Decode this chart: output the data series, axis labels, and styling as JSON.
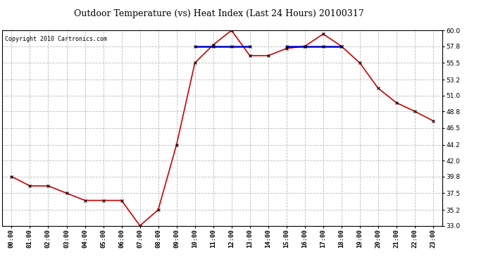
{
  "title": "Outdoor Temperature (vs) Heat Index (Last 24 Hours) 20100317",
  "copyright": "Copyright 2010 Cartronics.com",
  "background_color": "#ffffff",
  "plot_bg_color": "#ffffff",
  "grid_color": "#bbbbbb",
  "x_labels": [
    "00:00",
    "01:00",
    "02:00",
    "03:00",
    "04:00",
    "05:00",
    "06:00",
    "07:00",
    "08:00",
    "09:00",
    "10:00",
    "11:00",
    "12:00",
    "13:00",
    "14:00",
    "15:00",
    "16:00",
    "17:00",
    "18:00",
    "19:00",
    "20:00",
    "21:00",
    "22:00",
    "23:00"
  ],
  "temp_data": [
    39.8,
    38.5,
    38.5,
    37.5,
    36.5,
    36.5,
    36.5,
    33.0,
    35.2,
    44.2,
    55.5,
    58.0,
    60.0,
    56.5,
    56.5,
    57.5,
    57.8,
    59.5,
    57.8,
    55.5,
    52.0,
    50.0,
    48.8,
    47.5
  ],
  "heat_data": [
    null,
    null,
    null,
    null,
    null,
    null,
    null,
    null,
    null,
    null,
    57.8,
    57.8,
    57.8,
    57.8,
    null,
    57.8,
    57.8,
    57.8,
    57.8,
    null,
    null,
    null,
    null,
    null
  ],
  "temp_color": "#cc0000",
  "heat_color": "#0000cc",
  "marker_symbol": "x",
  "marker_size": 3,
  "ylim_min": 33.0,
  "ylim_max": 60.0,
  "ytick_values": [
    33.0,
    35.2,
    37.5,
    39.8,
    42.0,
    44.2,
    46.5,
    48.8,
    51.0,
    53.2,
    55.5,
    57.8,
    60.0
  ],
  "title_fontsize": 9,
  "copyright_fontsize": 6,
  "tick_fontsize": 6.5,
  "linewidth_temp": 1.2,
  "linewidth_heat": 1.8
}
